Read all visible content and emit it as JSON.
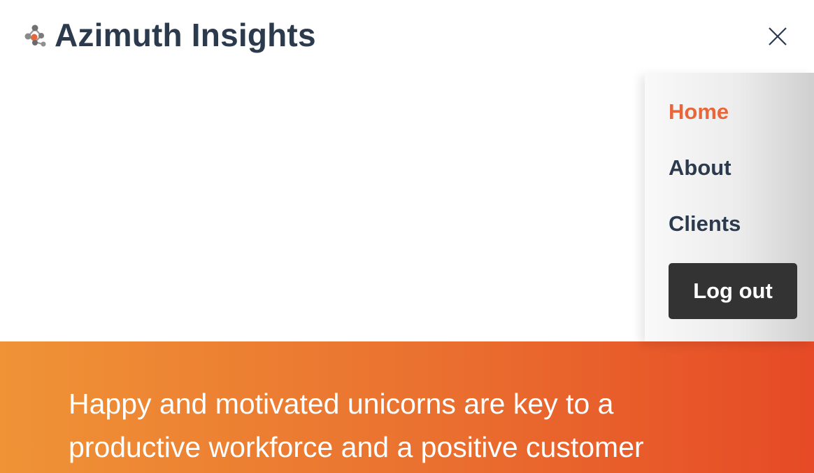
{
  "header": {
    "brand_name": "Azimuth Insights",
    "logo_icon": "molecule-logo-icon",
    "close_icon": "close-icon"
  },
  "menu": {
    "items": [
      {
        "label": "Home",
        "active": true
      },
      {
        "label": "About",
        "active": false
      },
      {
        "label": "Clients",
        "active": false
      }
    ],
    "logout_label": "Log out"
  },
  "hero": {
    "text": "Happy and motivated unicorns are key to a productive workforce and a positive customer"
  },
  "colors": {
    "brand_text": "#2c3a4e",
    "active_accent": "#e8673a",
    "button_bg": "#333333",
    "hero_gradient_start": "#ef9336",
    "hero_gradient_end": "#e64a26"
  }
}
